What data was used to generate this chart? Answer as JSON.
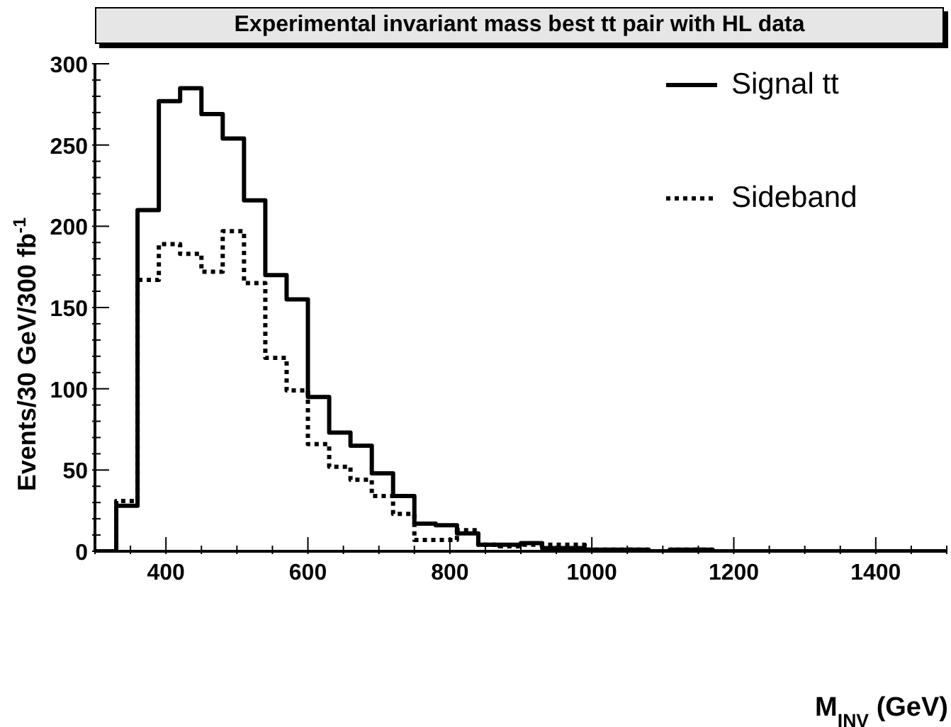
{
  "chart_data": {
    "type": "step",
    "title": "Experimental invariant mass best tt pair with HL data",
    "xlabel": "M$_{INV}$ (GeV)",
    "ylabel": "Events/30 GeV/300 fb$^{-1}$",
    "x": [
      300,
      330,
      360,
      390,
      420,
      450,
      480,
      510,
      540,
      570,
      600,
      630,
      660,
      690,
      720,
      750,
      780,
      810,
      840,
      870,
      900,
      930,
      960,
      990,
      1020,
      1050,
      1080,
      1110,
      1140,
      1170,
      1500
    ],
    "series": [
      {
        "name": "Signal tt",
        "color": "#000000",
        "line_style": "solid",
        "values": [
          0,
          28,
          210,
          277,
          285,
          269,
          254,
          216,
          170,
          155,
          95,
          73,
          65,
          48,
          34,
          17,
          16,
          11,
          4,
          4,
          5,
          2,
          2,
          1,
          1,
          1,
          0,
          1,
          1,
          0,
          0
        ]
      },
      {
        "name": "Sideband",
        "color": "#000000",
        "line_style": "dotted",
        "values": [
          0,
          31,
          167,
          189,
          183,
          172,
          197,
          165,
          119,
          99,
          66,
          52,
          44,
          34,
          23,
          7,
          7,
          13,
          4,
          3,
          4,
          4,
          4,
          1,
          1,
          1,
          0,
          1,
          1,
          0,
          0
        ]
      }
    ],
    "xlim": [
      300,
      1500
    ],
    "xticks": [
      {
        "value": 300,
        "label": null
      },
      {
        "value": 350,
        "label": null
      },
      400,
      {
        "value": 450,
        "label": null
      },
      {
        "value": 500,
        "label": null
      },
      {
        "value": 550,
        "label": null
      },
      600,
      {
        "value": 650,
        "label": null
      },
      {
        "value": 700,
        "label": null
      },
      {
        "value": 750,
        "label": null
      },
      800,
      {
        "value": 850,
        "label": null
      },
      {
        "value": 900,
        "label": null
      },
      {
        "value": 950,
        "label": null
      },
      1000,
      {
        "value": 1050,
        "label": null
      },
      {
        "value": 1100,
        "label": null
      },
      {
        "value": 1150,
        "label": null
      },
      1200,
      {
        "value": 1250,
        "label": null
      },
      {
        "value": 1300,
        "label": null
      },
      {
        "value": 1350,
        "label": null
      },
      1400,
      {
        "value": 1450,
        "label": null
      },
      {
        "value": 1500,
        "label": null
      }
    ],
    "ylim": [
      0,
      300
    ],
    "yticks": [
      0,
      {
        "value": 10,
        "label": null
      },
      {
        "value": 20,
        "label": null
      },
      {
        "value": 30,
        "label": null
      },
      {
        "value": 40,
        "label": null
      },
      50,
      {
        "value": 60,
        "label": null
      },
      {
        "value": 70,
        "label": null
      },
      {
        "value": 80,
        "label": null
      },
      {
        "value": 90,
        "label": null
      },
      100,
      {
        "value": 110,
        "label": null
      },
      {
        "value": 120,
        "label": null
      },
      {
        "value": 130,
        "label": null
      },
      {
        "value": 140,
        "label": null
      },
      150,
      {
        "value": 160,
        "label": null
      },
      {
        "value": 170,
        "label": null
      },
      {
        "value": 180,
        "label": null
      },
      {
        "value": 190,
        "label": null
      },
      200,
      {
        "value": 210,
        "label": null
      },
      {
        "value": 220,
        "label": null
      },
      {
        "value": 230,
        "label": null
      },
      {
        "value": 240,
        "label": null
      },
      250,
      {
        "value": 260,
        "label": null
      },
      {
        "value": 270,
        "label": null
      },
      {
        "value": 280,
        "label": null
      },
      {
        "value": 290,
        "label": null
      },
      300
    ],
    "grid": false,
    "legend": "top right"
  }
}
